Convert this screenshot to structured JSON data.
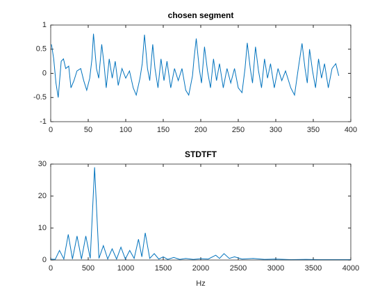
{
  "chart_data": [
    {
      "type": "line",
      "title": "chosen segment",
      "color": "#0072bd",
      "x": [
        1,
        4,
        7,
        10,
        14,
        17,
        20,
        24,
        27,
        31,
        35,
        40,
        44,
        48,
        52,
        55,
        57,
        61,
        64,
        68,
        71,
        74,
        78,
        82,
        86,
        90,
        95,
        100,
        105,
        110,
        114,
        119,
        122,
        125,
        129,
        132,
        136,
        139,
        143,
        147,
        151,
        155,
        160,
        165,
        170,
        175,
        180,
        184,
        189,
        191,
        194,
        198,
        201,
        205,
        209,
        213,
        217,
        221,
        225,
        230,
        235,
        240,
        245,
        250,
        255,
        259,
        262,
        266,
        269,
        273,
        277,
        281,
        285,
        289,
        293,
        298,
        303,
        308,
        313,
        320,
        325,
        330,
        335,
        339,
        342,
        345,
        349,
        353,
        357,
        361,
        365,
        370,
        375,
        380,
        384
      ],
      "values": [
        0.6,
        0.3,
        -0.2,
        -0.5,
        0.25,
        0.3,
        0.1,
        0.15,
        -0.3,
        -0.15,
        0.05,
        0.1,
        -0.15,
        -0.35,
        -0.1,
        0.3,
        0.82,
        0.1,
        -0.1,
        0.6,
        0.2,
        -0.3,
        0.3,
        -0.1,
        0.25,
        -0.25,
        0.1,
        -0.1,
        0.05,
        -0.3,
        -0.45,
        -0.1,
        0.2,
        0.8,
        0.1,
        -0.15,
        0.6,
        0.1,
        -0.3,
        0.3,
        -0.15,
        0.25,
        -0.3,
        0.1,
        -0.15,
        0.1,
        -0.35,
        -0.45,
        -0.05,
        0.3,
        0.72,
        0.1,
        -0.2,
        0.55,
        0.05,
        -0.3,
        0.3,
        -0.15,
        0.2,
        -0.3,
        0.1,
        -0.2,
        0.1,
        -0.3,
        -0.4,
        0.1,
        0.63,
        0.1,
        -0.2,
        0.55,
        0.05,
        -0.3,
        0.3,
        -0.1,
        0.2,
        -0.3,
        0.1,
        -0.15,
        0.05,
        -0.3,
        -0.45,
        0.1,
        0.62,
        0.1,
        -0.2,
        0.5,
        0.05,
        -0.3,
        0.3,
        -0.1,
        0.2,
        -0.3,
        0.1,
        0.2,
        -0.05
      ],
      "xlim": [
        0,
        400
      ],
      "xticks": [
        0,
        50,
        100,
        150,
        200,
        250,
        300,
        350,
        400
      ],
      "ylim": [
        -1,
        1
      ],
      "yticks": [
        -1,
        -0.5,
        0,
        0.5,
        1
      ]
    },
    {
      "type": "line",
      "title": "STDTFT",
      "x_label": "Hz",
      "color": "#0072bd",
      "x": [
        0,
        60,
        117,
        175,
        234,
        290,
        351,
        410,
        468,
        527,
        585,
        643,
        702,
        760,
        819,
        878,
        936,
        995,
        1053,
        1112,
        1170,
        1215,
        1260,
        1320,
        1380,
        1440,
        1500,
        1560,
        1640,
        1720,
        1800,
        1900,
        2000,
        2100,
        2200,
        2250,
        2310,
        2380,
        2450,
        2550,
        2700,
        2850,
        3000,
        3200,
        3400,
        3600,
        3800,
        4000
      ],
      "values": [
        0.3,
        0.2,
        3,
        0.3,
        8,
        0.3,
        7.5,
        0.3,
        7.5,
        0.5,
        29,
        0.5,
        4.5,
        0.3,
        3.5,
        0.3,
        4,
        0.3,
        3,
        0.5,
        6.5,
        1,
        8.5,
        0.5,
        2,
        0.3,
        1,
        0.2,
        0.8,
        0.2,
        0.5,
        0.2,
        0.4,
        0.3,
        1.5,
        0.5,
        2,
        0.5,
        1,
        0.3,
        0.5,
        0.2,
        0.3,
        0.1,
        0.2,
        0.1,
        0.1,
        0.1
      ],
      "xlim": [
        0,
        4000
      ],
      "xticks": [
        0,
        500,
        1000,
        1500,
        2000,
        2500,
        3000,
        3500,
        4000
      ],
      "ylim": [
        0,
        30
      ],
      "yticks": [
        0,
        10,
        20,
        30
      ]
    }
  ]
}
